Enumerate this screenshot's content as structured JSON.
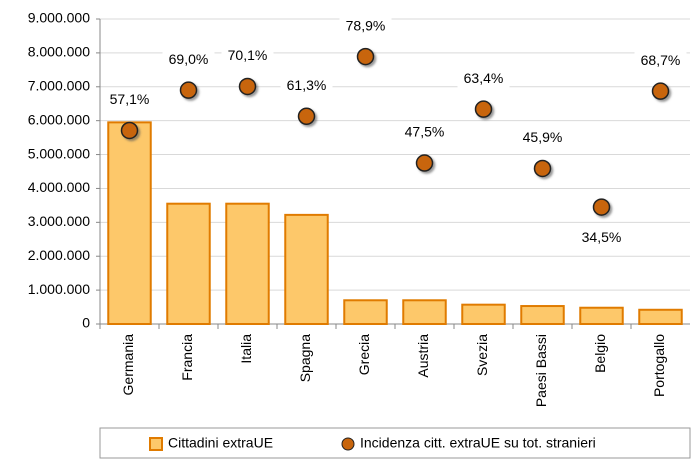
{
  "chart_data": {
    "type": "bar",
    "categories": [
      "Germania",
      "Francia",
      "Italia",
      "Spagna",
      "Grecia",
      "Austria",
      "Svezia",
      "Paesi Bassi",
      "Belgio",
      "Portogallo"
    ],
    "series": [
      {
        "name": "Cittadini extraUE",
        "color": "#fdc86a",
        "edge": "#e07b00",
        "values": [
          5950000,
          3550000,
          3550000,
          3220000,
          700000,
          700000,
          570000,
          530000,
          480000,
          420000
        ]
      },
      {
        "name": "Incidenza citt. extraUE su tot. stranieri",
        "color": "#c8650c",
        "axis": "y2",
        "values": [
          57.1,
          69.0,
          70.1,
          61.3,
          78.9,
          47.5,
          63.4,
          45.9,
          34.5,
          68.7
        ],
        "value_labels": [
          "57,1%",
          "69,0%",
          "70,1%",
          "61,3%",
          "78,9%",
          "47,5%",
          "63,4%",
          "45,9%",
          "34,5%",
          "68,7%"
        ]
      }
    ],
    "ylim": [
      0,
      9000000
    ],
    "yticks": [
      0,
      {
        "value": 1000000,
        "label": "1.000.000"
      },
      {
        "value": 2000000,
        "label": "2.000.000"
      },
      {
        "value": 3000000,
        "label": "3.000.000"
      },
      {
        "value": 4000000,
        "label": "4.000.000"
      },
      {
        "value": 5000000,
        "label": "5.000.000"
      },
      {
        "value": 6000000,
        "label": "6.000.000"
      },
      {
        "value": 7000000,
        "label": "7.000.000"
      },
      {
        "value": 8000000,
        "label": "8.000.000"
      },
      {
        "value": 9000000,
        "label": "9.000.000"
      }
    ],
    "y2lim": [
      0,
      90
    ],
    "grid": true
  }
}
